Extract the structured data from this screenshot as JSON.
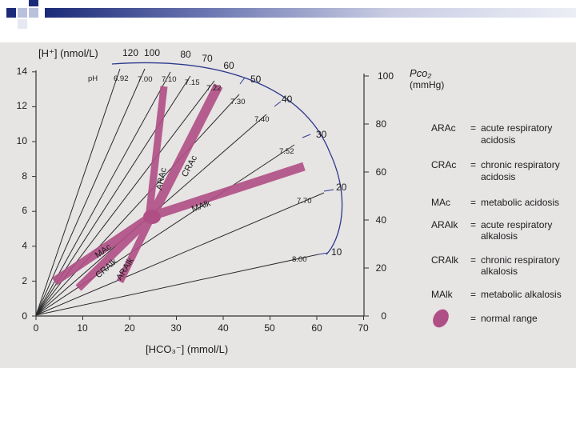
{
  "figure": {
    "y_axis_left_title": "[H⁺] (nmol/L)",
    "y_axis_right_title_1": "Pco₂",
    "y_axis_right_title_2": "(mmHg)",
    "x_axis_title": "[HCO₃⁻] (mmol/L)",
    "left_ticks": [
      "0",
      "2",
      "4",
      "6",
      "8",
      "10",
      "12",
      "14"
    ],
    "bottom_ticks": [
      "0",
      "10",
      "20",
      "30",
      "40",
      "50",
      "60",
      "70"
    ],
    "right_ticks": [
      "0",
      "20",
      "40",
      "60",
      "80",
      "100"
    ],
    "h_top_labels": [
      "120",
      "100",
      "80",
      "70",
      "60"
    ],
    "pco2_arc_labels": [
      "50",
      "40",
      "30",
      "20",
      "10"
    ],
    "ph_label": "pH",
    "ph_values": [
      "6.92",
      "7.00",
      "7.10",
      "7.15",
      "7.22",
      "7.30",
      "7.40",
      "7.52",
      "7.70",
      "8.00"
    ],
    "band_labels": {
      "arac": "ARAc",
      "crac": "CRAc",
      "malk": "MAlk",
      "mac": "MAc",
      "cralk": "CRAlk",
      "aralk": "ARAlk"
    }
  },
  "legend": [
    {
      "abbr": "ARAc",
      "eq": "=",
      "text1": "acute respiratory",
      "text2": "acidosis"
    },
    {
      "abbr": "CRAc",
      "eq": "=",
      "text1": "chronic respiratory",
      "text2": "acidosis"
    },
    {
      "abbr": "MAc",
      "eq": "=",
      "text1": "metabolic acidosis",
      "text2": ""
    },
    {
      "abbr": "ARAlk",
      "eq": "=",
      "text1": "acute respiratory",
      "text2": "alkalosis"
    },
    {
      "abbr": "CRAlk",
      "eq": "=",
      "text1": "chronic respiratory",
      "text2": "alkalosis"
    },
    {
      "abbr": "MAlk",
      "eq": "=",
      "text1": "metabolic alkalosis",
      "text2": ""
    },
    {
      "abbr": "",
      "eq": "=",
      "text1": "normal range",
      "text2": ""
    }
  ],
  "colors": {
    "band": "#b04f85",
    "band_fill": "#c46a98",
    "ink": "#1c1c1c",
    "accent": "#1b2a78"
  }
}
